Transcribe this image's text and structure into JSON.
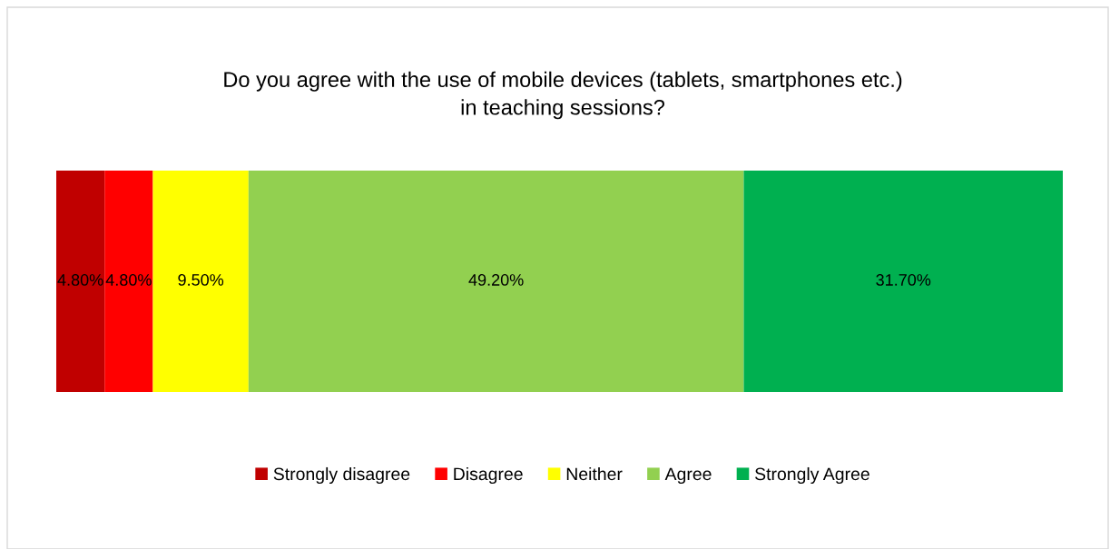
{
  "chart_data": {
    "type": "bar",
    "orientation": "horizontal",
    "stacked": true,
    "title": "Do you agree with the use of mobile devices (tablets, smartphones etc.)\nin teaching sessions?",
    "categories": [
      null
    ],
    "xlim": [
      0,
      100
    ],
    "tick_labels": false,
    "legend": "bottom",
    "series": [
      {
        "name": "Strongly disagree",
        "color": "#c00000",
        "values": [
          4.8
        ],
        "value_labels": [
          "4.80%"
        ]
      },
      {
        "name": "Disagree",
        "color": "#ff0000",
        "values": [
          4.8
        ],
        "value_labels": [
          "4.80%"
        ]
      },
      {
        "name": "Neither",
        "color": "#ffff00",
        "values": [
          9.5
        ],
        "value_labels": [
          "9.50%"
        ]
      },
      {
        "name": "Agree",
        "color": "#92d050",
        "values": [
          49.2
        ],
        "value_labels": [
          "49.20%"
        ]
      },
      {
        "name": "Strongly Agree",
        "color": "#00b050",
        "values": [
          31.7
        ],
        "value_labels": [
          "31.70%"
        ]
      }
    ]
  }
}
